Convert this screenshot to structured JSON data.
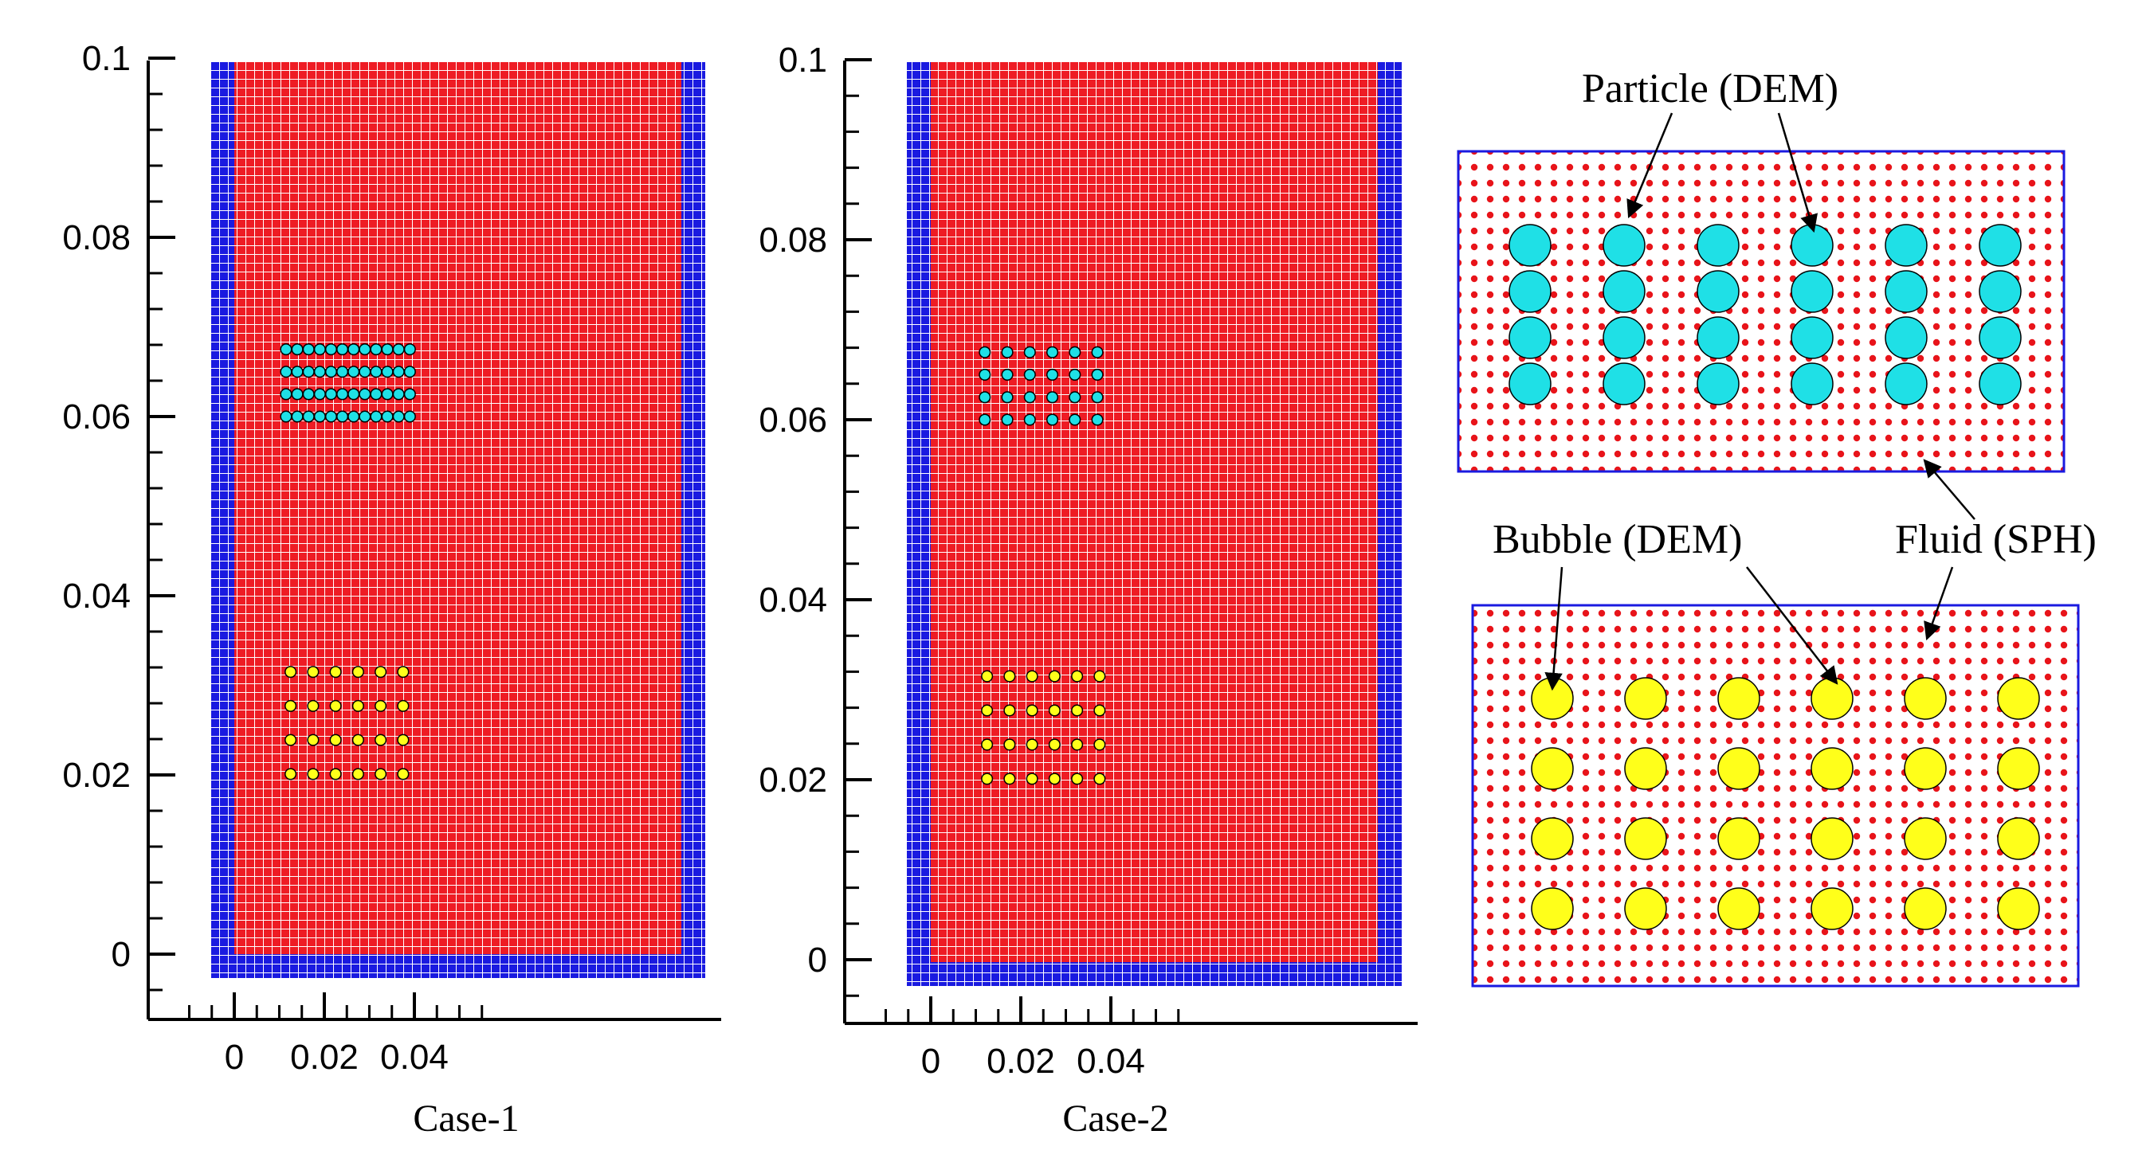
{
  "panels": [
    {
      "id": "case-1",
      "label": "Case-1",
      "x_ticks": [
        "0",
        "0.02",
        "0.04"
      ],
      "y_ticks": [
        "0",
        "0.02",
        "0.04",
        "0.06",
        "0.08",
        "0.1"
      ],
      "x_tick_values": [
        0,
        0.02,
        0.04
      ],
      "y_tick_values": [
        0,
        0.02,
        0.04,
        0.06,
        0.08,
        0.1
      ],
      "particles": {
        "x_start": 0.0115,
        "x_step": 0.0025,
        "cols": 12,
        "y_start": 0.0675,
        "y_step": -0.0025,
        "rows": 4,
        "radius": 0.0012
      },
      "bubbles": {
        "x_start": 0.0125,
        "x_step": 0.005,
        "cols": 6,
        "y_start": 0.0315,
        "y_step": -0.0038,
        "rows": 4,
        "radius": 0.0012
      }
    },
    {
      "id": "case-2",
      "label": "Case-2",
      "x_ticks": [
        "0",
        "0.02",
        "0.04"
      ],
      "y_ticks": [
        "0",
        "0.02",
        "0.04",
        "0.06",
        "0.08",
        "0.1"
      ],
      "x_tick_values": [
        0,
        0.02,
        0.04
      ],
      "y_tick_values": [
        0,
        0.02,
        0.04,
        0.06,
        0.08,
        0.1
      ],
      "particles": {
        "x_start": 0.012,
        "x_step": 0.005,
        "cols": 6,
        "y_start": 0.0675,
        "y_step": -0.0025,
        "rows": 4,
        "radius": 0.0012
      },
      "bubbles": {
        "x_start": 0.0125,
        "x_step": 0.005,
        "cols": 6,
        "y_start": 0.0315,
        "y_step": -0.0038,
        "rows": 4,
        "radius": 0.0012
      }
    }
  ],
  "inset_top": {
    "callouts": [
      "Particle (DEM)"
    ],
    "circle_cols": 6,
    "circle_rows": 4
  },
  "inset_bottom": {
    "callouts": [
      "Bubble (DEM)",
      "Fluid (SPH)"
    ],
    "circle_cols": 6,
    "circle_rows": 4
  },
  "legend_text": {
    "particle": "Particle (DEM)",
    "bubble": "Bubble (DEM)",
    "fluid": "Fluid (SPH)"
  },
  "colors": {
    "fluid": "#ee1c24",
    "wall": "#1a1ae0",
    "particle": "#1fe0e6",
    "bubble": "#ffff1a",
    "grid_line": "#ffffff",
    "inset_border": "#1a1ae0",
    "fluid_dot": "#e8141a"
  }
}
